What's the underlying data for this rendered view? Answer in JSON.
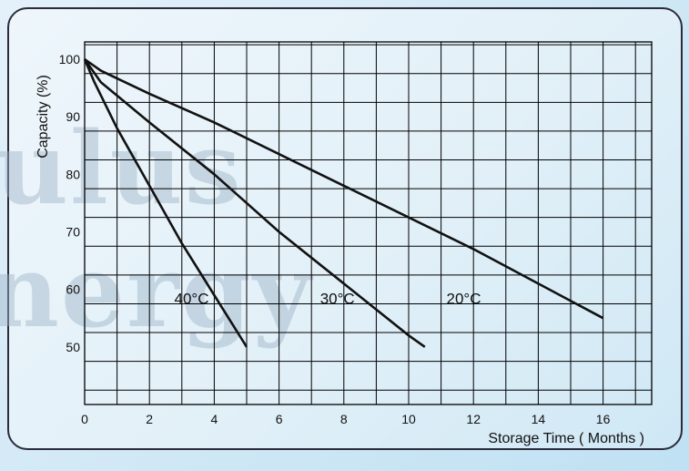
{
  "watermark": {
    "line1": "ulus",
    "line2": "nergy"
  },
  "chart_data": {
    "type": "line",
    "xlabel": "Storage Time ( Months )",
    "ylabel": "Capacity (%)",
    "xlim": [
      0,
      17.5
    ],
    "ylim": [
      40,
      103
    ],
    "x_ticks": [
      0,
      2,
      4,
      6,
      8,
      10,
      12,
      14,
      16
    ],
    "y_ticks": [
      50,
      60,
      70,
      80,
      90,
      100
    ],
    "grid": true,
    "series": [
      {
        "name": "40°C",
        "x": [
          0,
          0.3,
          1,
          2,
          3,
          4,
          5
        ],
        "y": [
          100,
          96,
          88,
          78,
          68,
          59,
          50
        ]
      },
      {
        "name": "30°C",
        "x": [
          0,
          0.5,
          2,
          4,
          6,
          8,
          10,
          10.5
        ],
        "y": [
          100,
          96,
          89,
          80,
          70,
          61,
          52,
          50
        ]
      },
      {
        "name": "20°C",
        "x": [
          0,
          0.5,
          2,
          4,
          8,
          12,
          16
        ],
        "y": [
          100,
          98,
          94,
          89,
          78,
          67,
          55
        ]
      }
    ],
    "series_label_positions": [
      {
        "name": "40°C",
        "x": 3.3,
        "y": 57.5
      },
      {
        "name": "30°C",
        "x": 7.8,
        "y": 57.5
      },
      {
        "name": "20°C",
        "x": 11.7,
        "y": 57.5
      }
    ]
  }
}
